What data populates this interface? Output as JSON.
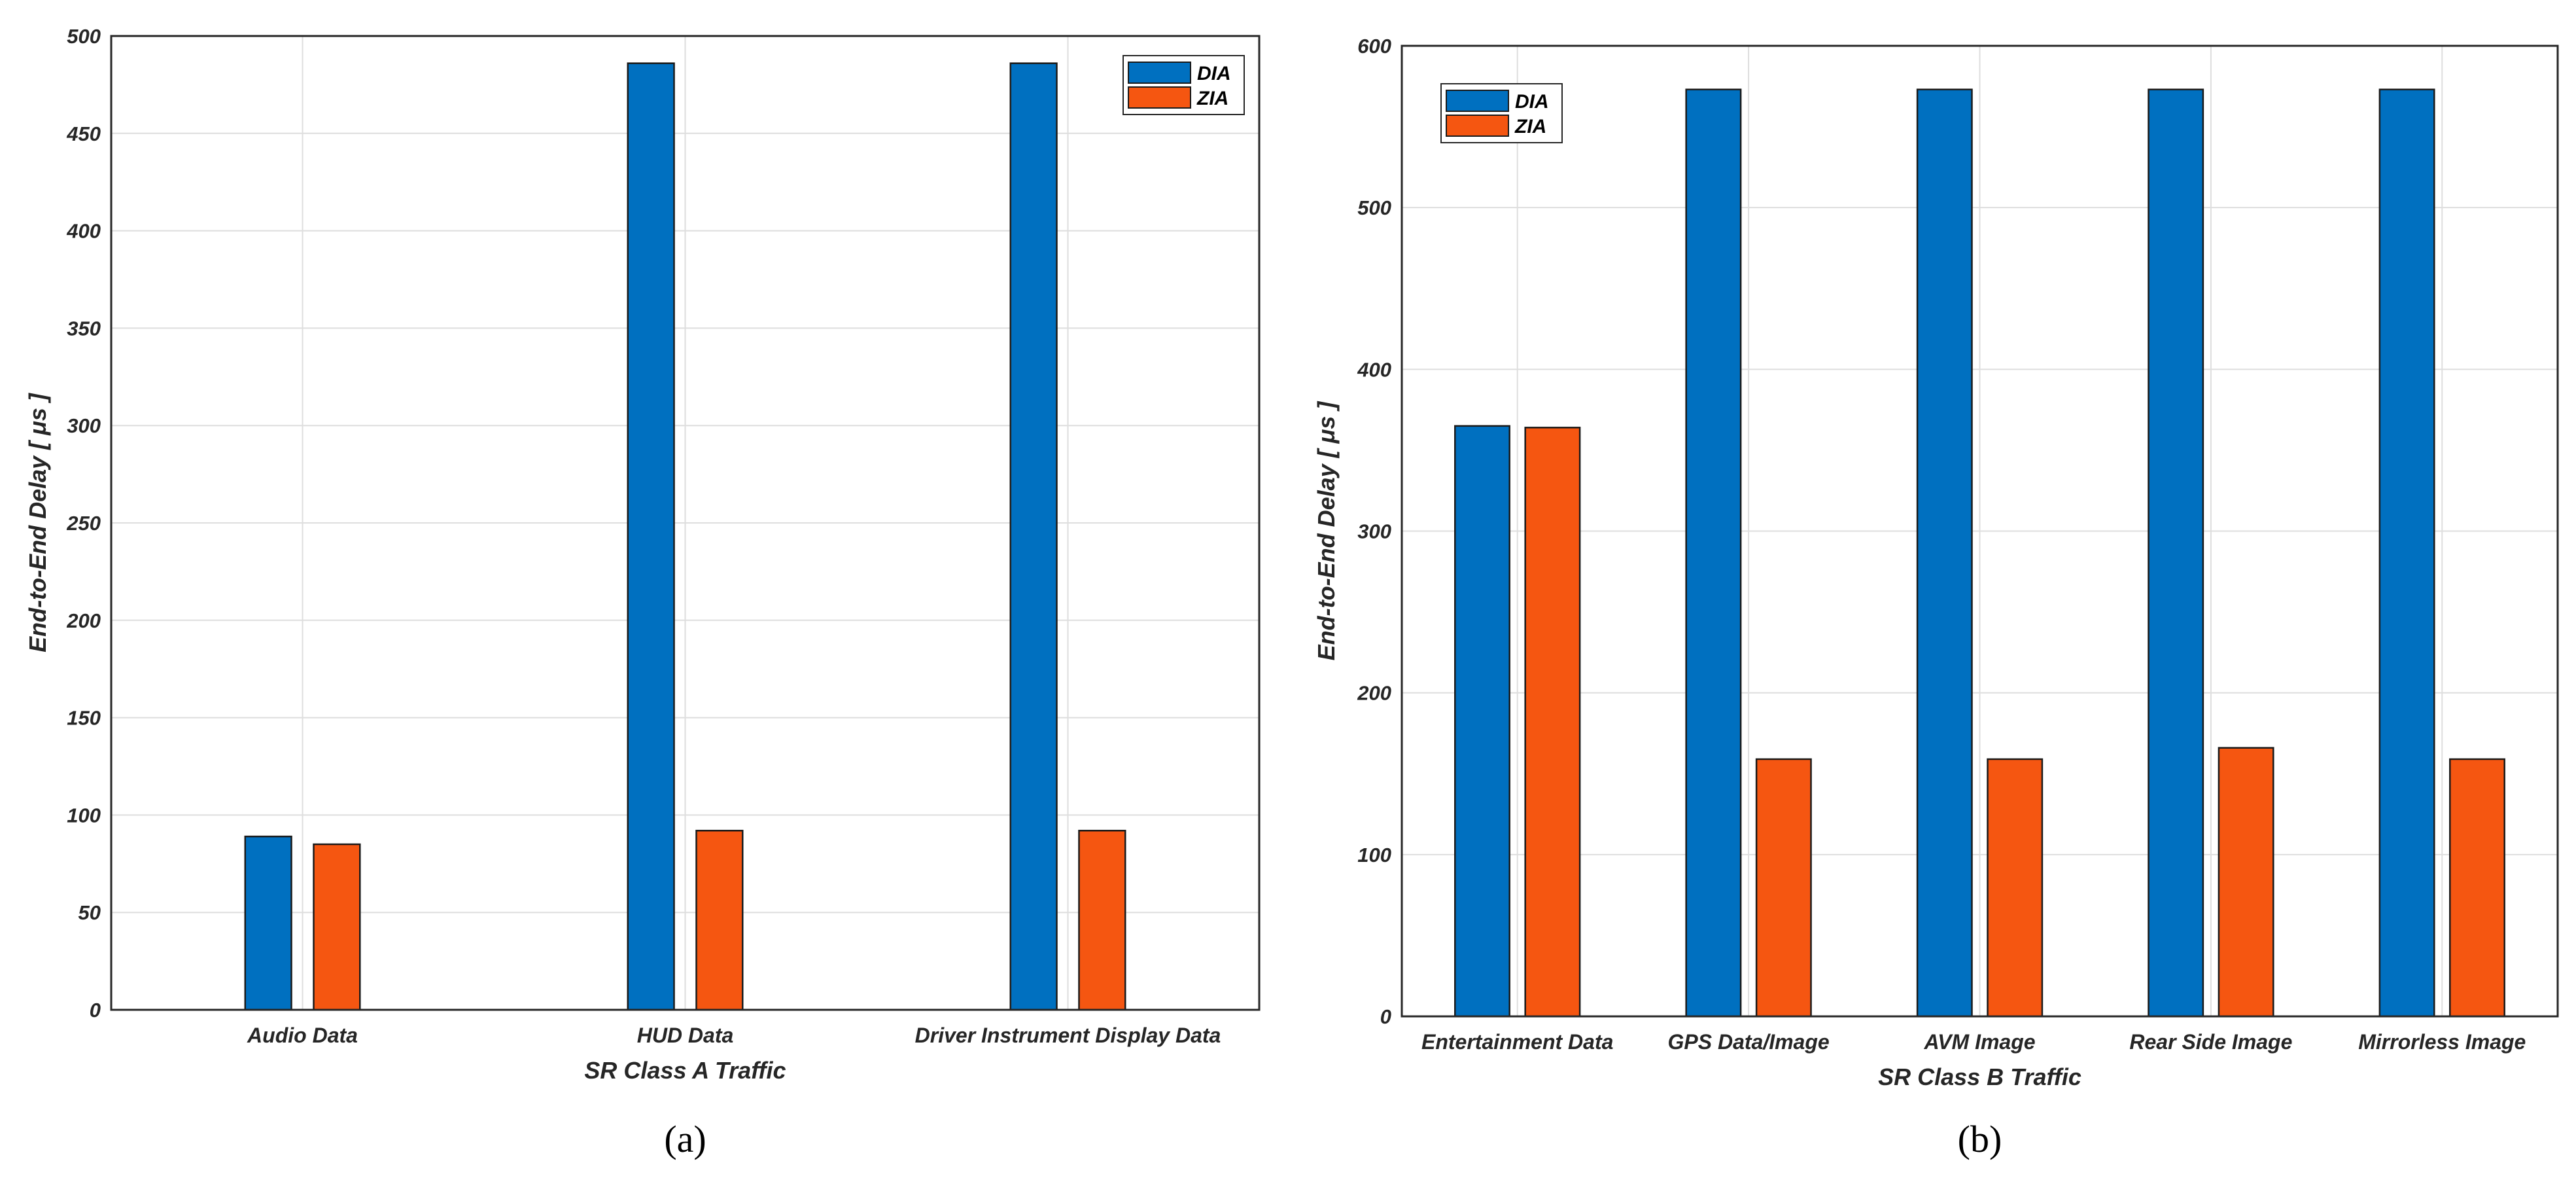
{
  "colors": {
    "DIA": "#0070c0",
    "ZIA": "#f55611"
  },
  "chart_data": [
    {
      "type": "bar",
      "panel_label": "(a)",
      "categories": [
        "Audio Data",
        "HUD Data",
        "Driver Instrument Display Data"
      ],
      "series": [
        {
          "name": "DIA",
          "values": [
            89,
            486,
            486
          ]
        },
        {
          "name": "ZIA",
          "values": [
            85,
            92,
            92
          ]
        }
      ],
      "xlabel": "SR Class A Traffic",
      "ylabel": "End-to-End Delay [ μs ]",
      "ylim": [
        0,
        500
      ],
      "yticks": [
        0,
        50,
        100,
        150,
        200,
        250,
        300,
        350,
        400,
        450,
        500
      ],
      "grid": true,
      "legend_position": "top-right"
    },
    {
      "type": "bar",
      "panel_label": "(b)",
      "categories": [
        "Entertainment Data",
        "GPS Data/Image",
        "AVM Image",
        "Rear Side Image",
        "Mirrorless Image"
      ],
      "series": [
        {
          "name": "DIA",
          "values": [
            365,
            573,
            573,
            573,
            573
          ]
        },
        {
          "name": "ZIA",
          "values": [
            364,
            159,
            159,
            166,
            159
          ]
        }
      ],
      "xlabel": "SR Class B Traffic",
      "ylabel": "End-to-End Delay [ μs ]",
      "ylim": [
        0,
        600
      ],
      "yticks": [
        0,
        100,
        200,
        300,
        400,
        500,
        600
      ],
      "grid": true,
      "legend_position": "top-left"
    }
  ]
}
